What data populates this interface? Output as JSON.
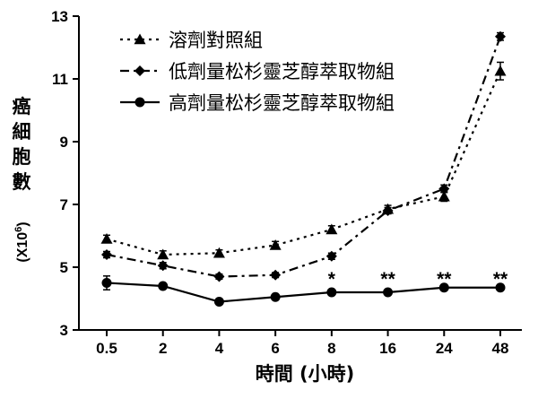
{
  "chart_data": {
    "type": "line",
    "title": "",
    "xlabel": "時間 (小時)",
    "ylabel_lines": [
      "癌",
      "細",
      "胞",
      "數"
    ],
    "ylabel_unit_prefix": "(X10",
    "ylabel_unit_exp": "6",
    "ylabel_unit_suffix": ")",
    "categories": [
      "0.5",
      "2",
      "4",
      "6",
      "8",
      "16",
      "24",
      "48"
    ],
    "ylim": [
      3,
      13
    ],
    "yticks": [
      3,
      5,
      7,
      9,
      11,
      13
    ],
    "grid": false,
    "legend_position": "top-left",
    "series": [
      {
        "name": "溶劑對照組",
        "marker": "triangle",
        "line_style": "dotted",
        "values": [
          5.9,
          5.4,
          5.45,
          5.7,
          6.2,
          6.85,
          7.25,
          11.25
        ],
        "errors": [
          0.12,
          0.12,
          0.1,
          0.12,
          0.12,
          0.12,
          0.15,
          0.28
        ]
      },
      {
        "name": "低劑量松杉靈芝醇萃取物組",
        "marker": "diamond",
        "line_style": "dash-dot",
        "values": [
          5.4,
          5.05,
          4.7,
          4.75,
          5.35,
          6.8,
          7.5,
          12.35
        ],
        "errors": [
          0.1,
          0.1,
          0.08,
          0.08,
          0.1,
          0.1,
          0.12,
          0.12
        ]
      },
      {
        "name": "高劑量松杉靈芝醇萃取物組",
        "marker": "circle",
        "line_style": "solid",
        "values": [
          4.5,
          4.4,
          3.9,
          4.05,
          4.2,
          4.2,
          4.35,
          4.35
        ],
        "errors": [
          0.22,
          0.08,
          0.08,
          0.08,
          0.08,
          0.08,
          0.08,
          0.08
        ]
      }
    ],
    "annotations": [
      {
        "category": "8",
        "text": "*"
      },
      {
        "category": "16",
        "text": "**"
      },
      {
        "category": "24",
        "text": "**"
      },
      {
        "category": "48",
        "text": "**"
      }
    ]
  }
}
